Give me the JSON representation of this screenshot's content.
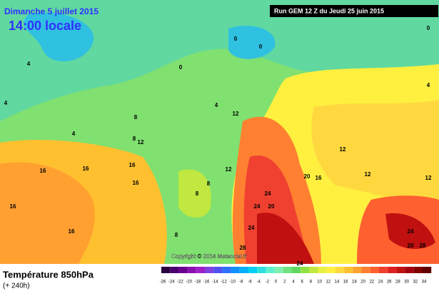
{
  "header": {
    "date": "Dimanche 5 juillet 2015",
    "time": "14:00 locale",
    "run": "Run GEM 12 Z du Jeudi 25 juin 2015"
  },
  "copyright": "Copyright © 2014 Meteociel.fr",
  "footer": {
    "title": "Température 850hPa",
    "lead": "(+ 240h)"
  },
  "map": {
    "contour_labels": [
      0,
      0,
      0,
      0,
      4,
      4,
      4,
      4,
      4,
      8,
      8,
      8,
      8,
      8,
      12,
      12,
      12,
      12,
      12,
      12,
      16,
      16,
      16,
      16,
      16,
      16,
      16,
      20,
      20,
      20,
      24,
      24,
      24,
      24,
      24,
      28,
      28
    ]
  },
  "scale": {
    "ticks": [
      -26,
      -24,
      -22,
      -20,
      -18,
      -16,
      -14,
      -12,
      -10,
      -8,
      -6,
      -4,
      -2,
      0,
      2,
      4,
      6,
      8,
      10,
      12,
      14,
      16,
      18,
      20,
      22,
      24,
      26,
      28,
      30,
      32,
      34
    ],
    "colors": [
      "#2a0040",
      "#4a0070",
      "#6a0090",
      "#8a10b0",
      "#a020c8",
      "#8040e0",
      "#5050f0",
      "#3070ff",
      "#1090ff",
      "#00b0ff",
      "#00d0f0",
      "#30e0e0",
      "#60f0d0",
      "#80f0b0",
      "#70e080",
      "#60d860",
      "#90e040",
      "#c0e840",
      "#e8f040",
      "#fff040",
      "#ffd840",
      "#ffc030",
      "#ffa030",
      "#ff8030",
      "#ff6030",
      "#f04030",
      "#e02020",
      "#c01010",
      "#a00010",
      "#800000",
      "#600000"
    ]
  }
}
